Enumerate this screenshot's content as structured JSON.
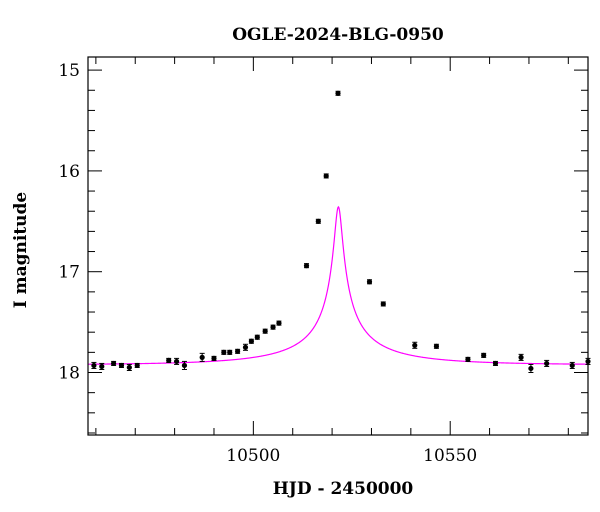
{
  "chart_data": {
    "type": "scatter",
    "title": "OGLE-2024-BLG-0950",
    "xlabel": "HJD - 2450000",
    "ylabel": "I magnitude",
    "xlim": [
      10458,
      10585
    ],
    "ylim": [
      18.62,
      14.87
    ],
    "y_inverted": true,
    "x_major_ticks": [
      10500,
      10550
    ],
    "x_minor_step": 10,
    "y_major_ticks": [
      15,
      16,
      17,
      18
    ],
    "y_minor_step": 0.2,
    "x_tick_labels": [
      "10500",
      "10550"
    ],
    "y_tick_labels": [
      "15",
      "16",
      "17",
      "18"
    ],
    "grid": false,
    "series": [
      {
        "kind": "points",
        "color": "#000000",
        "x": [
          10459.5,
          10461.5,
          10464.5,
          10466.5,
          10468.5,
          10470.5,
          10478.5,
          10480.5,
          10482.5,
          10487.0,
          10490.0,
          10492.5,
          10494.0,
          10496.0,
          10498.0,
          10499.5,
          10501.0,
          10503.0,
          10505.0,
          10506.5,
          10513.5,
          10516.5,
          10518.5,
          10521.5,
          10529.5,
          10533.0,
          10541.0,
          10546.5,
          10554.5,
          10558.5,
          10561.5,
          10568.0,
          10570.5,
          10574.5,
          10581.0,
          10585.0
        ],
        "y": [
          17.93,
          17.94,
          17.91,
          17.93,
          17.95,
          17.93,
          17.88,
          17.89,
          17.93,
          17.85,
          17.86,
          17.8,
          17.8,
          17.79,
          17.75,
          17.69,
          17.65,
          17.59,
          17.55,
          17.51,
          16.94,
          16.5,
          16.05,
          15.23,
          17.1,
          17.32,
          17.73,
          17.74,
          17.87,
          17.83,
          17.91,
          17.85,
          17.96,
          17.91,
          17.93,
          17.89
        ],
        "err": [
          0.03,
          0.03,
          0.02,
          0.02,
          0.03,
          0.02,
          0.02,
          0.03,
          0.04,
          0.04,
          0.02,
          0.02,
          0.02,
          0.02,
          0.03,
          0.02,
          0.02,
          0.02,
          0.02,
          0.02,
          0.02,
          0.02,
          0.02,
          0.02,
          0.02,
          0.02,
          0.03,
          0.02,
          0.02,
          0.02,
          0.02,
          0.03,
          0.04,
          0.03,
          0.03,
          0.03
        ]
      },
      {
        "kind": "model-curve",
        "color": "#ff00ff",
        "model": "point-lens",
        "t0": 10521.6,
        "u0": 0.03,
        "tE": 31.5,
        "baseline_mag": 17.924,
        "fs": 0.1
      }
    ]
  }
}
